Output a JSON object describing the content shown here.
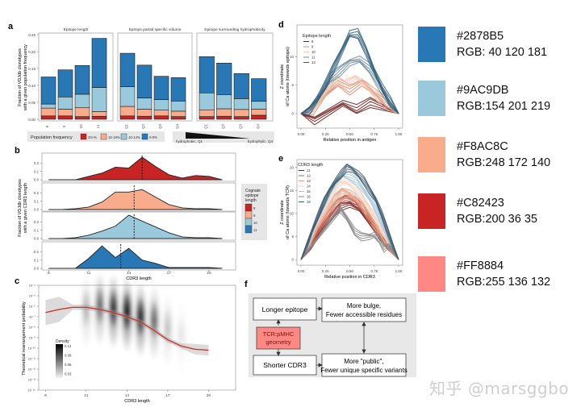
{
  "palette": {
    "blue": "#2878B5",
    "lightblue": "#9AC9DB",
    "peach": "#F8AC8C",
    "red": "#C82423",
    "pink": "#FF8884"
  },
  "swatches": [
    {
      "hex": "#2878B5",
      "rgb": "RGB:  40 120 181"
    },
    {
      "hex": "#9AC9DB",
      "rgb": "RGB:154 201 219"
    },
    {
      "hex": "#F8AC8C",
      "rgb": "RGB:248 172 140"
    },
    {
      "hex": "#C82423",
      "rgb": "RGB:200   36   35"
    },
    {
      "hex": "#FF8884",
      "rgb": "RGB:255 136 132"
    }
  ],
  "watermark": "知乎 @marsggbo",
  "chart_data": [
    {
      "panel": "a",
      "type": "bar",
      "stacked": true,
      "ylabel": "Fraction of VDJdb clonotypes with a given population frequency",
      "ylim": [
        0,
        0.25
      ],
      "yticks": [
        "0.00",
        "0.05",
        "0.10",
        "0.15",
        "0.20",
        "0.25"
      ],
      "facets": [
        {
          "title": "Epitope length",
          "categories": [
            "8",
            "9",
            "10",
            "11"
          ]
        },
        {
          "title": "Epitope partial specific volume",
          "categories": [
            "Q1",
            "Q2",
            "Q3",
            "Q4"
          ]
        },
        {
          "title": "Epitope surrounding hydrophobicity",
          "categories": [
            "Q1",
            "Q2",
            "Q3",
            "Q4"
          ]
        }
      ],
      "series": [
        {
          "name": "20+%",
          "values": [
            0.01,
            0.01,
            0.008,
            0.009,
            0.01,
            0.009,
            0.01,
            0.008,
            0.008,
            0.009,
            0.008,
            0.012
          ]
        },
        {
          "name": "15-19%",
          "values": [
            0.023,
            0.02,
            0.026,
            0.014,
            0.028,
            0.021,
            0.017,
            0.016,
            0.02,
            0.022,
            0.021,
            0.018
          ]
        },
        {
          "name": "10-14%",
          "values": [
            0.012,
            0.036,
            0.04,
            0.071,
            0.058,
            0.033,
            0.031,
            0.03,
            0.05,
            0.042,
            0.032,
            0.023
          ]
        },
        {
          "name": "0-9%",
          "values": [
            0.08,
            0.08,
            0.085,
            0.145,
            0.099,
            0.097,
            0.069,
            0.069,
            0.107,
            0.093,
            0.074,
            0.067
          ]
        }
      ],
      "legend": {
        "title": "Population frequency",
        "position": "bottom"
      },
      "gradient_label_left": "hydrophobic, Q1",
      "gradient_label_right": "hydrophylic, Q4"
    },
    {
      "panel": "b",
      "type": "area",
      "xlabel": "CDR3 length",
      "ylabel": "Fraction of VDJdb clonotypes with a given CDR3 length",
      "xlim": [
        7.5,
        22
      ],
      "xticks": [
        8,
        11,
        14,
        17,
        20
      ],
      "yticks": [
        "0.0",
        "0.1",
        "0.2"
      ],
      "ylim": [
        0,
        0.3
      ],
      "x": [
        8,
        9,
        10,
        11,
        12,
        13,
        14,
        15,
        16,
        17,
        18,
        19,
        20,
        21
      ],
      "series": [
        {
          "name": "8",
          "values": [
            0.0,
            0.0,
            0.0,
            0.04,
            0.08,
            0.15,
            0.14,
            0.27,
            0.16,
            0.06,
            0.02,
            0.05,
            0.04,
            0.0
          ],
          "mean": 15.0
        },
        {
          "name": "9",
          "values": [
            0.0,
            0.0,
            0.01,
            0.03,
            0.09,
            0.21,
            0.21,
            0.24,
            0.15,
            0.06,
            0.02,
            0.01,
            0.01,
            0.0
          ],
          "mean": 14.4
        },
        {
          "name": "10",
          "values": [
            0.0,
            0.0,
            0.01,
            0.04,
            0.09,
            0.15,
            0.28,
            0.21,
            0.14,
            0.07,
            0.02,
            0.01,
            0.01,
            0.0
          ],
          "mean": 14.4
        },
        {
          "name": "11",
          "values": [
            0.0,
            0.0,
            0.0,
            0.12,
            0.27,
            0.13,
            0.24,
            0.1,
            0.06,
            0.01,
            0.01,
            0.01,
            0.01,
            0.0
          ],
          "mean": 13.4
        }
      ],
      "legend": {
        "title": "Cognate epitope length",
        "position": "right",
        "entries": [
          "8",
          "9",
          "10",
          "11"
        ]
      }
    },
    {
      "panel": "c",
      "type": "heatmap",
      "xlabel": "CDR3 length",
      "ylabel": "Theoretical rearrangement probability",
      "xticks": [
        8,
        11,
        14,
        17,
        20
      ],
      "yticks": [
        "10⁻⁴",
        "10⁻⁵",
        "10⁻⁶",
        "10⁻⁷",
        "10⁻⁸",
        "10⁻⁹",
        "10⁻¹⁰",
        "10⁻¹¹",
        "10⁻¹²",
        "10⁻¹³",
        "10⁻¹⁴"
      ],
      "ylim_log10": [
        -14,
        -4
      ],
      "density_columns": [
        {
          "x": 11,
          "center": -6.5,
          "intensity": 0.25
        },
        {
          "x": 12,
          "center": -6.2,
          "intensity": 0.55
        },
        {
          "x": 13,
          "center": -6.5,
          "intensity": 0.85
        },
        {
          "x": 14,
          "center": -6.8,
          "intensity": 1.0
        },
        {
          "x": 15,
          "center": -7.3,
          "intensity": 0.9
        },
        {
          "x": 16,
          "center": -7.6,
          "intensity": 0.55
        },
        {
          "x": 17,
          "center": -8.3,
          "intensity": 0.2
        },
        {
          "x": 18,
          "center": -9.0,
          "intensity": 0.08
        }
      ],
      "fit_line": {
        "x": [
          8,
          9,
          10,
          11,
          12,
          13,
          14,
          15,
          16,
          17,
          18,
          19,
          20
        ],
        "y": [
          -6.6,
          -6.3,
          -6.1,
          -6.1,
          -6.3,
          -6.6,
          -7.0,
          -7.5,
          -8.3,
          -9.2,
          -9.8,
          -10.1,
          -10.2
        ]
      },
      "legend": {
        "title": "Density",
        "ticks": [
          "0.12",
          "0.09",
          "0.06",
          "0.03"
        ],
        "position": "bottom-left"
      }
    },
    {
      "panel": "d",
      "type": "line",
      "xlabel": "Relative position in antigen",
      "ylabel": "Z coordinate of Ca atoms (towards epitope) of overlayed CDR3 structures, Angstrom",
      "xticks": [
        "0.00",
        "0.25",
        "0.50",
        "0.75",
        "1.00"
      ],
      "yticks": [
        "0",
        "5",
        "10"
      ],
      "ylim": [
        -2,
        15
      ],
      "legend": {
        "title": "Epitope length",
        "entries": [
          "8",
          "9",
          "10",
          "11",
          "13"
        ],
        "position": "top-left"
      },
      "series": [
        {
          "name": "8",
          "x": [
            0,
            0.14,
            0.43,
            0.57,
            0.71,
            1
          ],
          "y": [
            0,
            -1.2,
            1.8,
            0.7,
            2.0,
            0
          ]
        },
        {
          "name": "9",
          "x": [
            0,
            0.125,
            0.25,
            0.375,
            0.5,
            0.625,
            0.75,
            0.875,
            1
          ],
          "y": [
            0,
            0.5,
            3.5,
            5.5,
            4.2,
            5.5,
            3.8,
            2.0,
            0
          ]
        },
        {
          "name": "10",
          "x": [
            0,
            0.11,
            0.22,
            0.33,
            0.44,
            0.56,
            0.67,
            0.78,
            0.89,
            1
          ],
          "y": [
            0,
            0.6,
            3.2,
            6.0,
            5.0,
            6.2,
            5.0,
            3.0,
            1.5,
            0
          ]
        },
        {
          "name": "11",
          "x": [
            0,
            0.1,
            0.2,
            0.3,
            0.4,
            0.5,
            0.6,
            0.7,
            0.8,
            0.9,
            1
          ],
          "y": [
            0,
            0.8,
            3.5,
            6.2,
            7.5,
            9.0,
            9.5,
            8.0,
            5.0,
            2.0,
            0
          ]
        },
        {
          "name": "13",
          "x": [
            0,
            0.083,
            0.167,
            0.25,
            0.333,
            0.417,
            0.5,
            0.583,
            0.667,
            0.75,
            0.833,
            0.917,
            1
          ],
          "y": [
            0,
            0.5,
            2.5,
            5.0,
            8.0,
            11.0,
            14.0,
            14.0,
            11.0,
            7.5,
            4.5,
            2.0,
            0
          ]
        }
      ]
    },
    {
      "panel": "e",
      "type": "line",
      "xlabel": "Relative position in CDR3",
      "ylabel": "Z coordinate of Ca atoms (towards TCR) of overlayed epitope structures, Angstrom",
      "xticks": [
        "0.00",
        "0.25",
        "0.50",
        "0.75",
        "1.00"
      ],
      "yticks": [
        "0",
        "5",
        "10",
        "15",
        "20"
      ],
      "ylim": [
        -0.5,
        21
      ],
      "legend": {
        "title": "CDR3 length",
        "entries": [
          "11",
          "12",
          "13",
          "14",
          "15",
          "16",
          "18"
        ],
        "position": "top-left"
      },
      "series": [
        {
          "name": "11",
          "x": [
            0,
            0.1,
            0.2,
            0.3,
            0.4,
            0.5,
            0.6,
            0.7,
            0.8,
            0.9,
            1
          ],
          "y": [
            0,
            3,
            6,
            9,
            11.5,
            12,
            11,
            8.5,
            5.5,
            2.5,
            0
          ]
        },
        {
          "name": "12",
          "x": [
            0,
            0.09,
            0.18,
            0.27,
            0.36,
            0.45,
            0.55,
            0.64,
            0.73,
            0.82,
            0.91,
            1
          ],
          "y": [
            0,
            3,
            6.5,
            9.5,
            12,
            13.5,
            13,
            11,
            8,
            5,
            2.5,
            0
          ]
        },
        {
          "name": "13",
          "x": [
            0,
            0.083,
            0.167,
            0.25,
            0.333,
            0.417,
            0.5,
            0.583,
            0.667,
            0.75,
            0.833,
            0.917,
            1
          ],
          "y": [
            0,
            3.2,
            7,
            10,
            13,
            15,
            14.5,
            13,
            10.5,
            8,
            5,
            2.5,
            0
          ]
        },
        {
          "name": "14",
          "x": [
            0,
            0.077,
            0.154,
            0.231,
            0.308,
            0.385,
            0.462,
            0.538,
            0.615,
            0.692,
            0.769,
            0.846,
            0.923,
            1
          ],
          "y": [
            0,
            3.5,
            7.5,
            11,
            14,
            16.5,
            17,
            16,
            14,
            11.5,
            9,
            6,
            3,
            0
          ]
        },
        {
          "name": "15",
          "x": [
            0,
            0.071,
            0.143,
            0.214,
            0.286,
            0.357,
            0.429,
            0.5,
            0.571,
            0.643,
            0.714,
            0.786,
            0.857,
            0.929,
            1
          ],
          "y": [
            0,
            3.5,
            7.5,
            11,
            14.5,
            17,
            18.5,
            18,
            17,
            15,
            13,
            10,
            6.5,
            3,
            0
          ]
        },
        {
          "name": "16",
          "x": [
            0,
            0.4,
            0.47,
            0.55,
            0.62,
            0.7,
            0.75,
            0.8,
            0.85,
            0.9,
            1
          ],
          "y": [
            0,
            11,
            9,
            6,
            5,
            5,
            5.3,
            4.5,
            2.5,
            3,
            0
          ]
        },
        {
          "name": "18",
          "x": [
            0,
            0.059,
            0.118,
            0.176,
            0.235,
            0.294,
            0.353,
            0.412,
            0.471,
            0.529,
            0.588,
            0.647,
            0.706,
            0.765,
            0.824,
            0.882,
            0.941,
            1
          ],
          "y": [
            0,
            3,
            6.5,
            9.5,
            12.5,
            15,
            17,
            18.5,
            20,
            19.5,
            18.5,
            17,
            15,
            13,
            10,
            6.5,
            3,
            0
          ]
        }
      ]
    }
  ],
  "panel_labels": {
    "a": "a",
    "b": "b",
    "c": "c",
    "d": "d",
    "e": "e",
    "f": "f"
  },
  "diagram": {
    "longer_epitope": "Longer epitope",
    "shorter_cdr3": "Shorter CDR3",
    "tcr_line1": "TCR:pMHC",
    "tcr_line2": "geometry",
    "bulge_line1": "More bulge,",
    "bulge_line2": "Fewer accessible residues",
    "public_line1": "More \"public\",",
    "public_line2": "Fewer unique specific variants"
  }
}
